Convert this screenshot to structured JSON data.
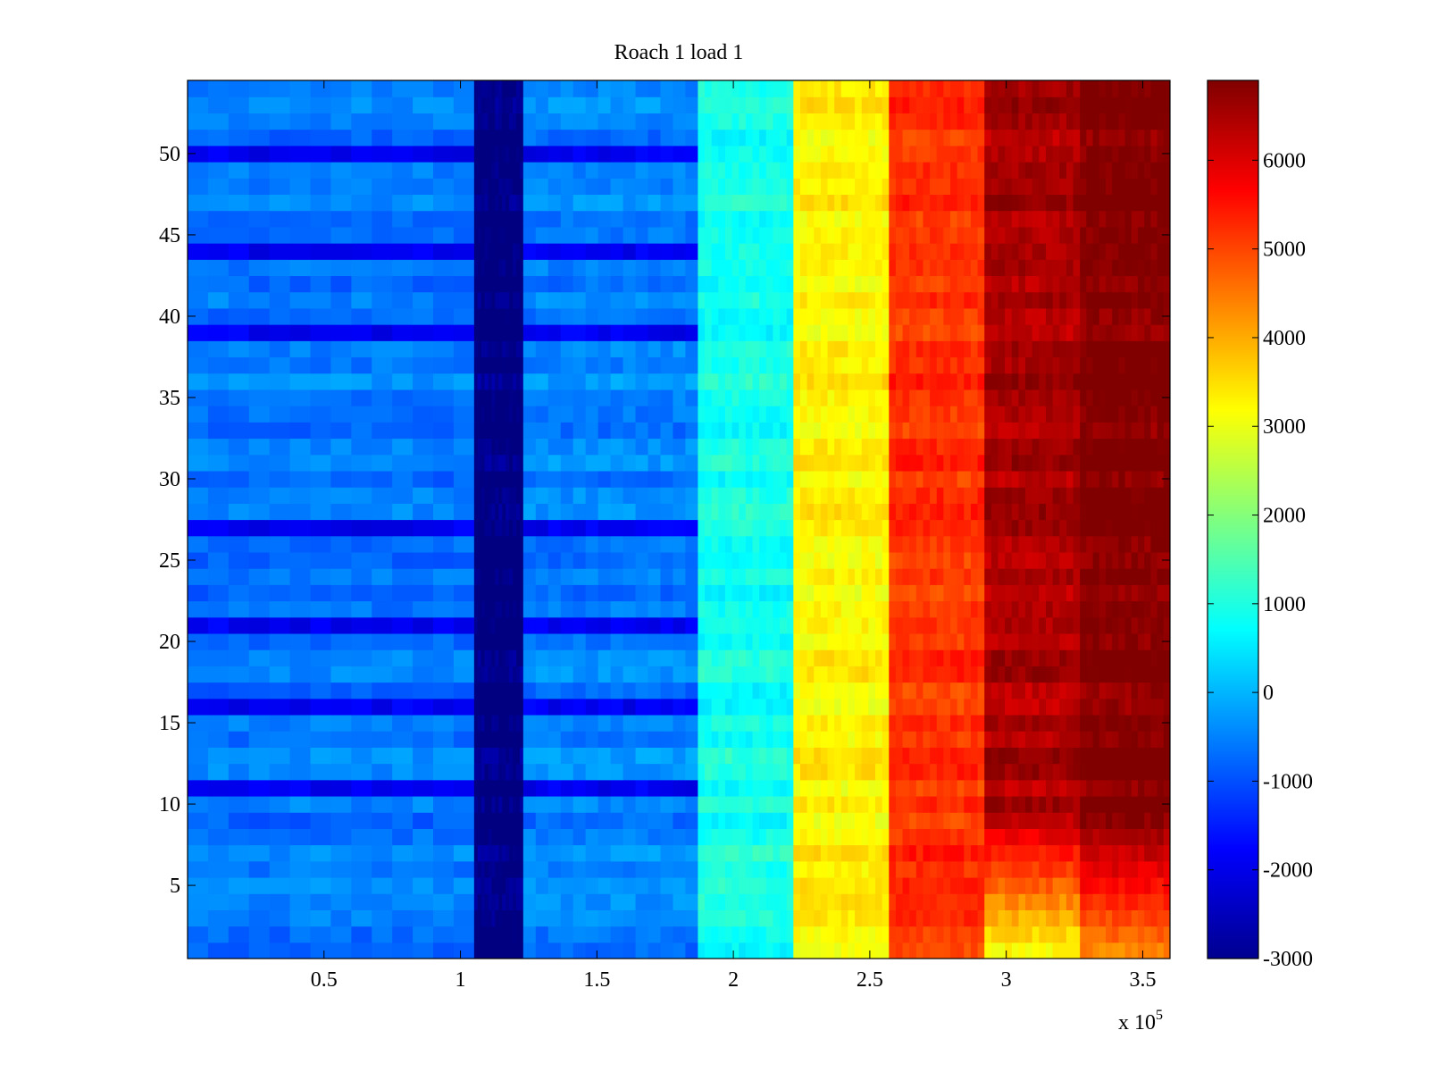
{
  "chart_data": {
    "type": "heatmap",
    "title": "Roach 1 load 1",
    "xlabel": "",
    "ylabel": "",
    "x_exponent_label": "x 10",
    "x_exponent_power": "5",
    "xlim": [
      0,
      3.6
    ],
    "ylim": [
      0.5,
      54.5
    ],
    "x_ticks": [
      0.5,
      1,
      1.5,
      2,
      2.5,
      3,
      3.5
    ],
    "x_tick_labels": [
      "0.5",
      "1",
      "1.5",
      "2",
      "2.5",
      "3",
      "3.5"
    ],
    "y_ticks": [
      5,
      10,
      15,
      20,
      25,
      30,
      35,
      40,
      45,
      50
    ],
    "y_tick_labels": [
      "5",
      "10",
      "15",
      "20",
      "25",
      "30",
      "35",
      "40",
      "45",
      "50"
    ],
    "rows": 54,
    "colormap": "jet",
    "clim": [
      -3000,
      6900
    ],
    "colorbar_ticks": [
      -3000,
      -2000,
      -1000,
      0,
      1000,
      2000,
      3000,
      4000,
      5000,
      6000
    ],
    "colorbar_tick_labels": [
      "-3000",
      "-2000",
      "-1000",
      "0",
      "1000",
      "2000",
      "3000",
      "4000",
      "5000",
      "6000"
    ],
    "column_bands": [
      {
        "x_start": 0.0,
        "x_end": 1.05,
        "value": -600
      },
      {
        "x_start": 1.05,
        "x_end": 1.23,
        "value": -3000
      },
      {
        "x_start": 1.23,
        "x_end": 1.87,
        "value": -500
      },
      {
        "x_start": 1.87,
        "x_end": 2.22,
        "value": 900
      },
      {
        "x_start": 2.22,
        "x_end": 2.57,
        "value": 3300
      },
      {
        "x_start": 2.57,
        "x_end": 2.92,
        "value": 5200
      },
      {
        "x_start": 2.92,
        "x_end": 3.27,
        "value": 6500
      },
      {
        "x_start": 3.27,
        "x_end": 3.6,
        "value": 6900
      }
    ],
    "dark_rows_y": [
      50,
      44,
      39,
      27,
      21,
      16,
      11
    ],
    "dark_row_value": -1900,
    "low_rows_region_values": {
      "rows": [
        1,
        2,
        3,
        4,
        5,
        6,
        7,
        8,
        9
      ],
      "band_2_92_3_27": 3200,
      "band_3_27_3_60": 4400
    }
  }
}
